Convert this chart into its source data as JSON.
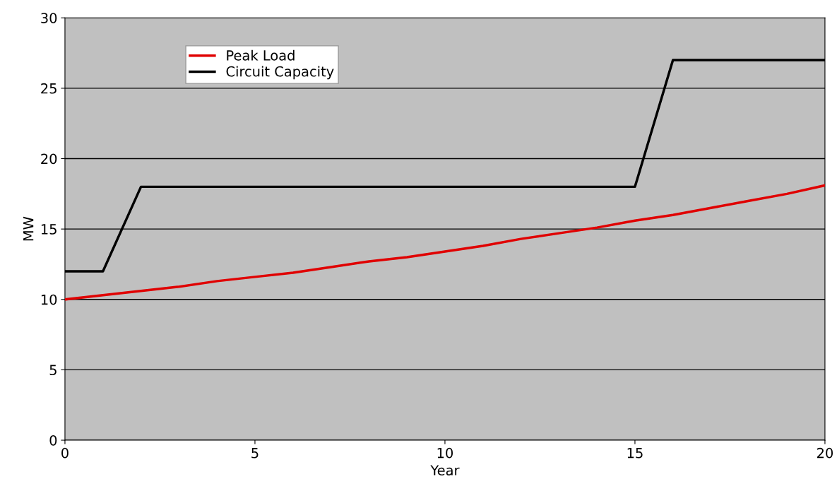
{
  "chart_data": {
    "type": "line",
    "xlabel": "Year",
    "ylabel": "MW",
    "x": [
      0,
      1,
      2,
      3,
      4,
      5,
      6,
      7,
      8,
      9,
      10,
      11,
      12,
      13,
      14,
      15,
      16,
      17,
      18,
      19,
      20
    ],
    "series": [
      {
        "name": "Peak Load",
        "color": "#e00000",
        "values": [
          10,
          10.3,
          10.6,
          10.9,
          11.3,
          11.6,
          11.9,
          12.3,
          12.7,
          13.0,
          13.4,
          13.8,
          14.3,
          14.7,
          15.1,
          15.6,
          16.0,
          16.5,
          17.0,
          17.5,
          18.1
        ]
      },
      {
        "name": "Circuit Capacity",
        "color": "#000000",
        "values": [
          12,
          12,
          18,
          18,
          18,
          18,
          18,
          18,
          18,
          18,
          18,
          18,
          18,
          18,
          18,
          18,
          27,
          27,
          27,
          27,
          27
        ]
      }
    ],
    "xlim": [
      0,
      20
    ],
    "xticks": [
      0,
      5,
      10,
      15,
      20
    ],
    "ylim": [
      0,
      30
    ],
    "yticks": [
      0,
      5,
      10,
      15,
      20,
      25,
      30
    ],
    "grid": "y",
    "legend": "top left",
    "marker": "none",
    "line_style": "solid"
  }
}
